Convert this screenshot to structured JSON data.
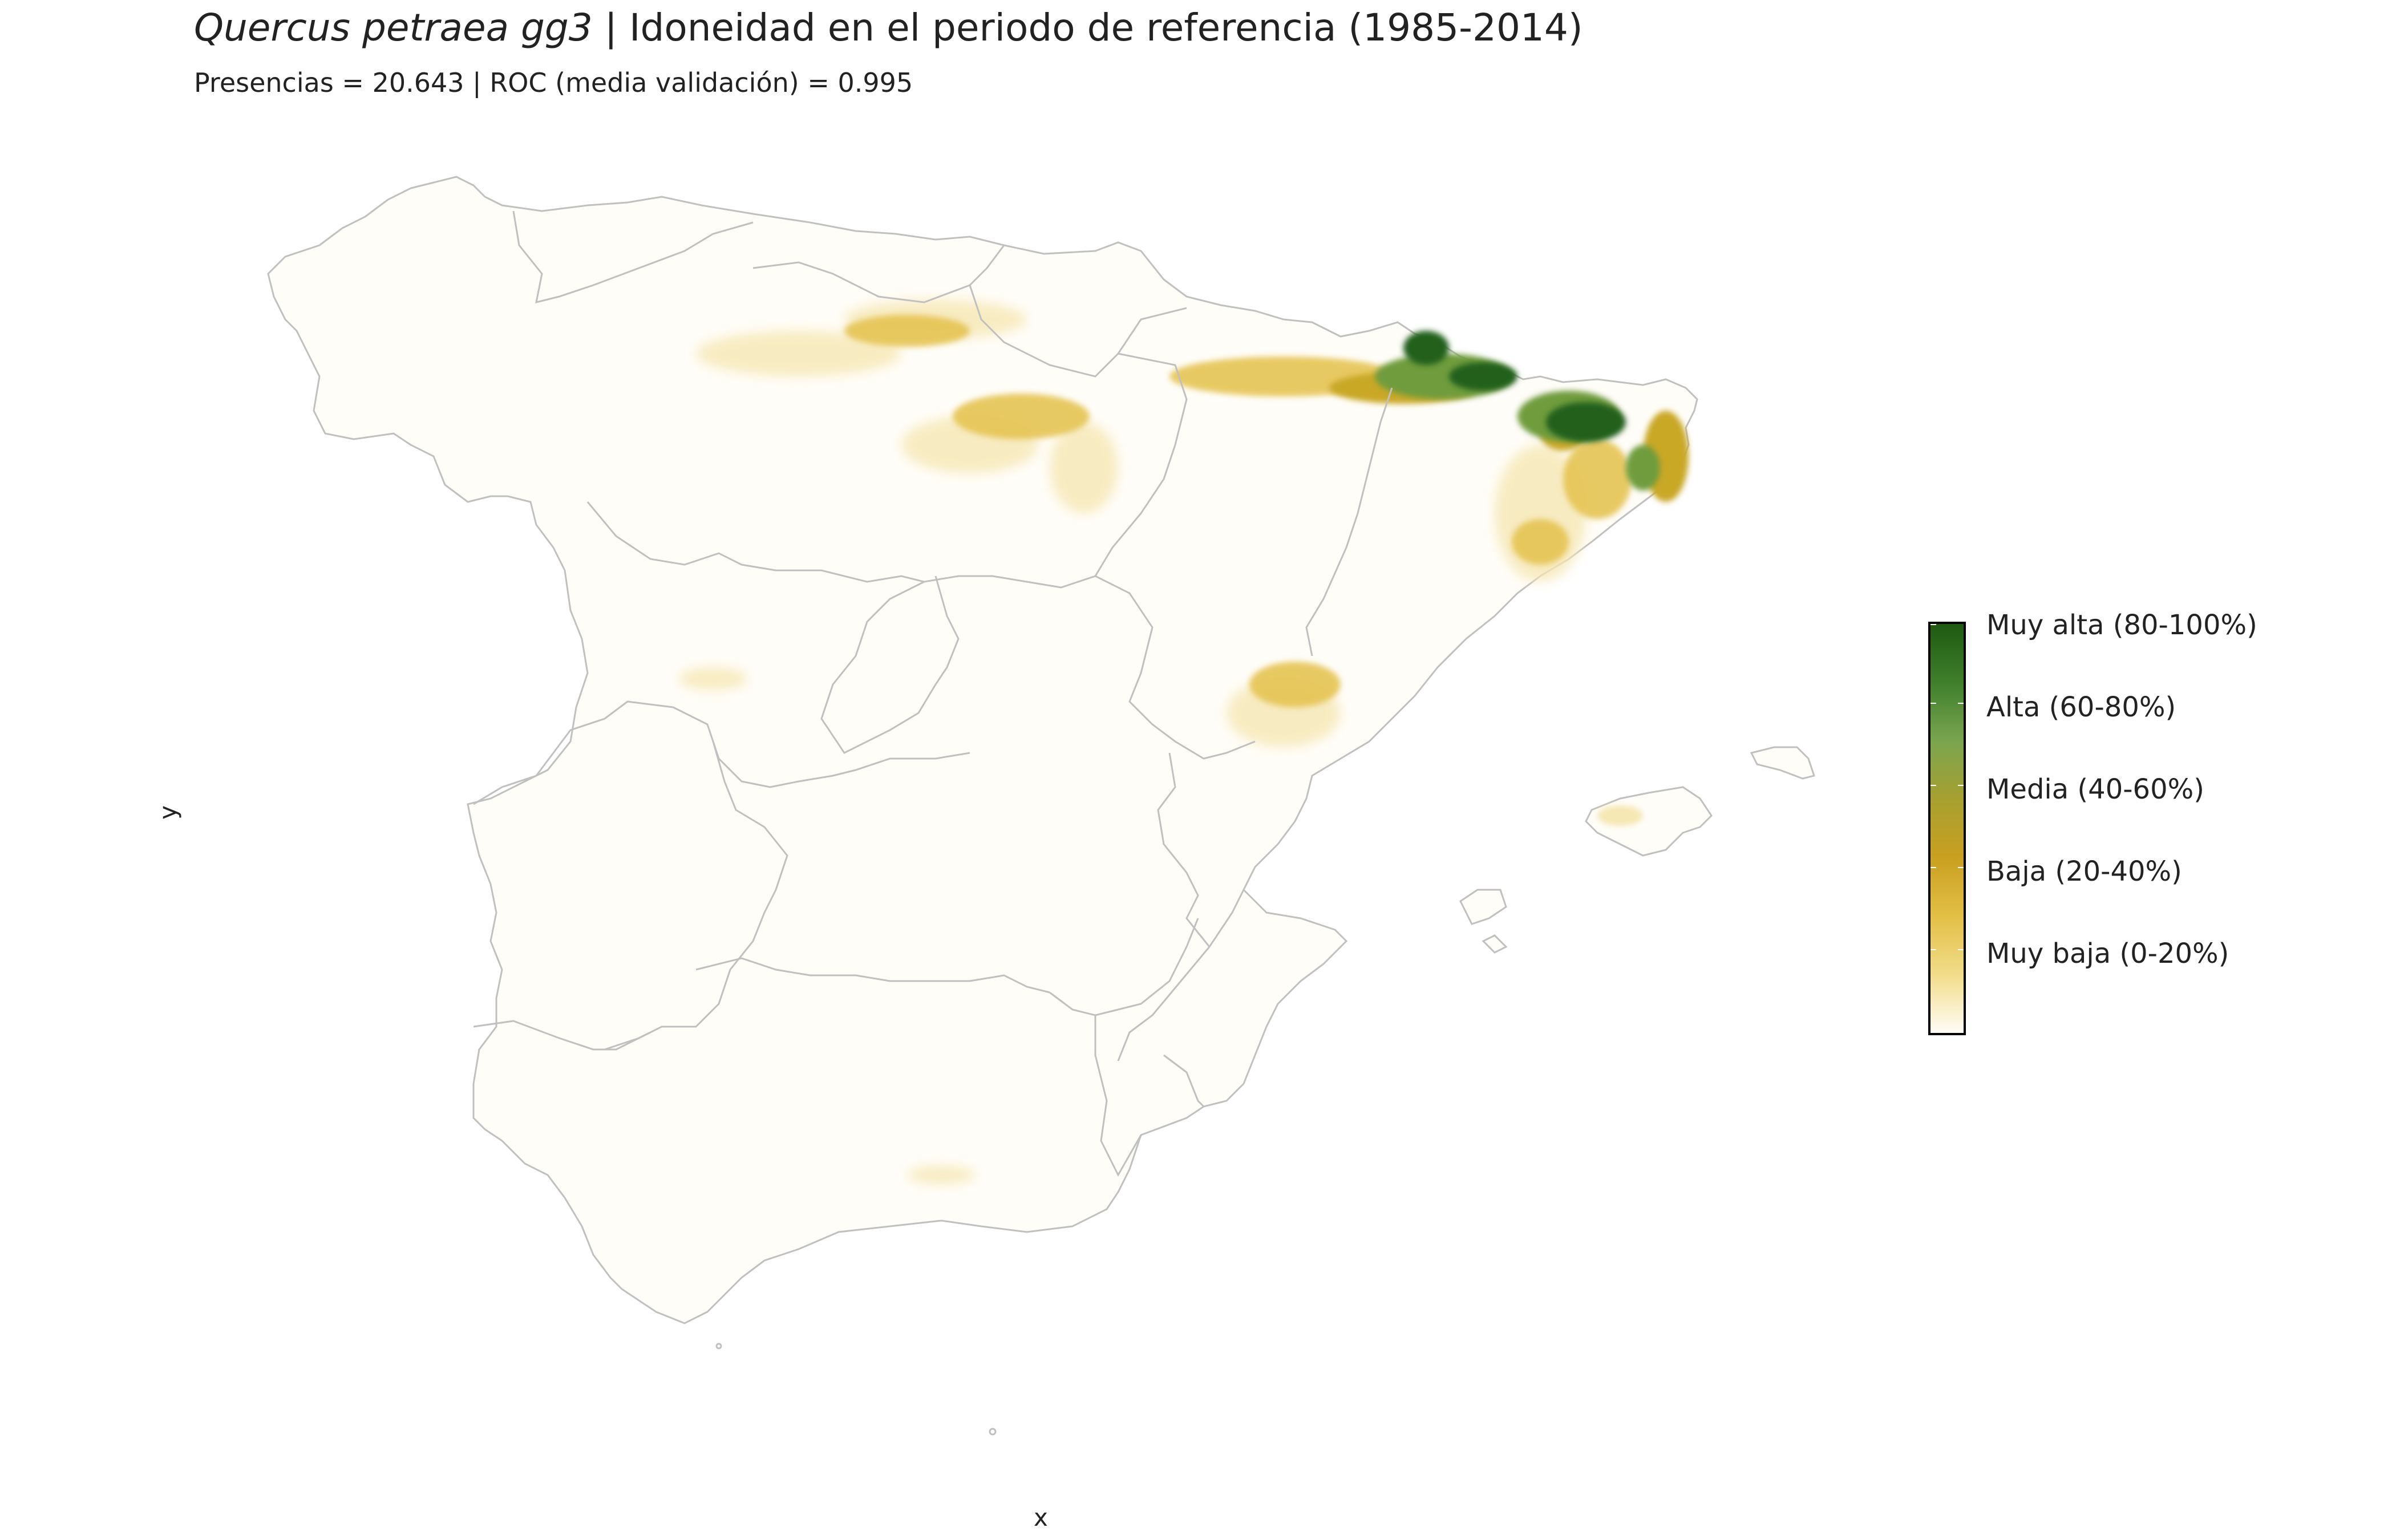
{
  "title": {
    "species": "Quercus petraea gg3",
    "rest": " | Idoneidad en el periodo de referencia (1985-2014)"
  },
  "subtitle": "Presencias = 20.643  |  ROC (media validación) = 0.995",
  "axes": {
    "xlabel": "x",
    "ylabel": "y"
  },
  "legend": {
    "colors": [
      "#fffdf6",
      "#f1dc8a",
      "#e2bf45",
      "#c9a020",
      "#a7a030",
      "#7aa54f",
      "#3f7f2c",
      "#1e5a12"
    ],
    "labels": [
      "Muy alta (80-100%)",
      "Alta (60-80%)",
      "Media (40-60%)",
      "Baja (20-40%)",
      "Muy baja (0-20%)"
    ]
  },
  "map_colors": {
    "land": "#fffdf8",
    "border": "#c0c0c0",
    "very_low": "#f6e7b4",
    "low": "#e5c453",
    "medium": "#c9a826",
    "high": "#6f9c3c",
    "very_high": "#22611a"
  }
}
